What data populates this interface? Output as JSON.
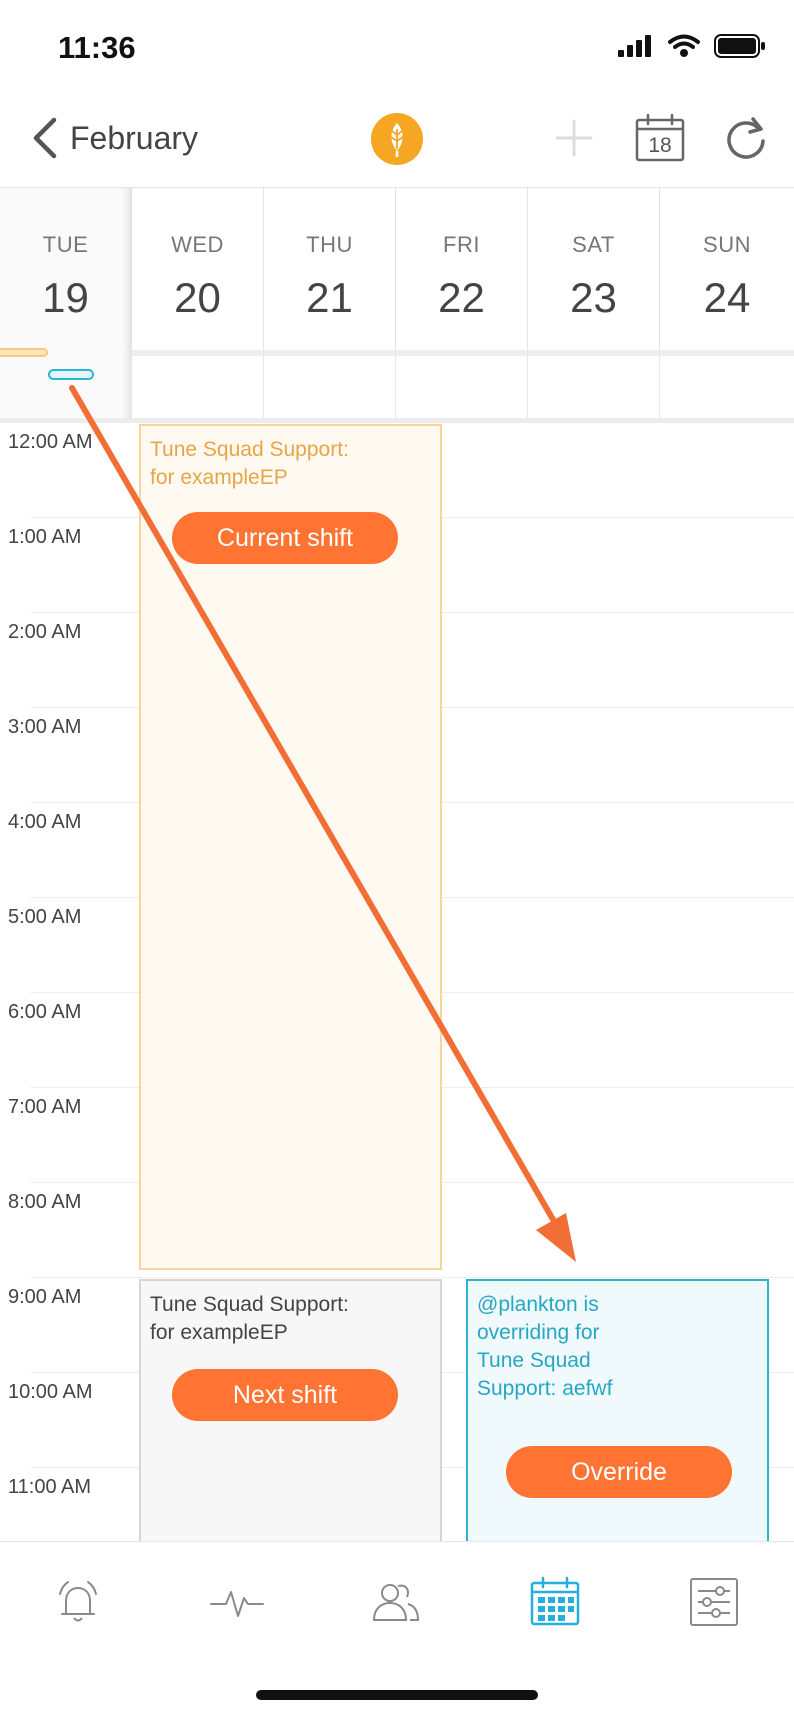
{
  "status_bar": {
    "time": "11:36"
  },
  "nav": {
    "back_label": "February",
    "calendar_day": "18",
    "icons": {
      "back": "chevron-left-icon",
      "logo": "leaf-logo-icon",
      "add": "plus-icon",
      "today": "calendar-icon",
      "refresh": "refresh-icon"
    }
  },
  "days": [
    {
      "dow": "TUE",
      "num": "19",
      "selected": true
    },
    {
      "dow": "WED",
      "num": "20"
    },
    {
      "dow": "THU",
      "num": "21"
    },
    {
      "dow": "FRI",
      "num": "22"
    },
    {
      "dow": "SAT",
      "num": "23"
    },
    {
      "dow": "SUN",
      "num": "24"
    }
  ],
  "hours": [
    "12:00 AM",
    "1:00 AM",
    "2:00 AM",
    "3:00 AM",
    "4:00 AM",
    "5:00 AM",
    "6:00 AM",
    "7:00 AM",
    "8:00 AM",
    "9:00 AM",
    "10:00 AM",
    "11:00 AM"
  ],
  "shifts": {
    "current": {
      "title": "Tune Squad Support:\nfor exampleEP",
      "badge": "Current shift"
    },
    "next": {
      "title": "Tune Squad Support:\nfor exampleEP",
      "badge": "Next shift"
    },
    "override": {
      "title": "@plankton is\noverriding for\nTune Squad\nSupport: aefwf",
      "badge": "Override"
    }
  },
  "colors": {
    "accent_orange": "#ff7433",
    "current_border": "#f9d49a",
    "override_border": "#2cb3cf",
    "active_tab": "#27aee0"
  },
  "tabs": [
    {
      "name": "alerts",
      "icon": "bell-icon"
    },
    {
      "name": "activity",
      "icon": "pulse-icon"
    },
    {
      "name": "people",
      "icon": "people-icon"
    },
    {
      "name": "schedule",
      "icon": "calendar-grid-icon",
      "active": true
    },
    {
      "name": "settings",
      "icon": "sliders-icon"
    }
  ]
}
